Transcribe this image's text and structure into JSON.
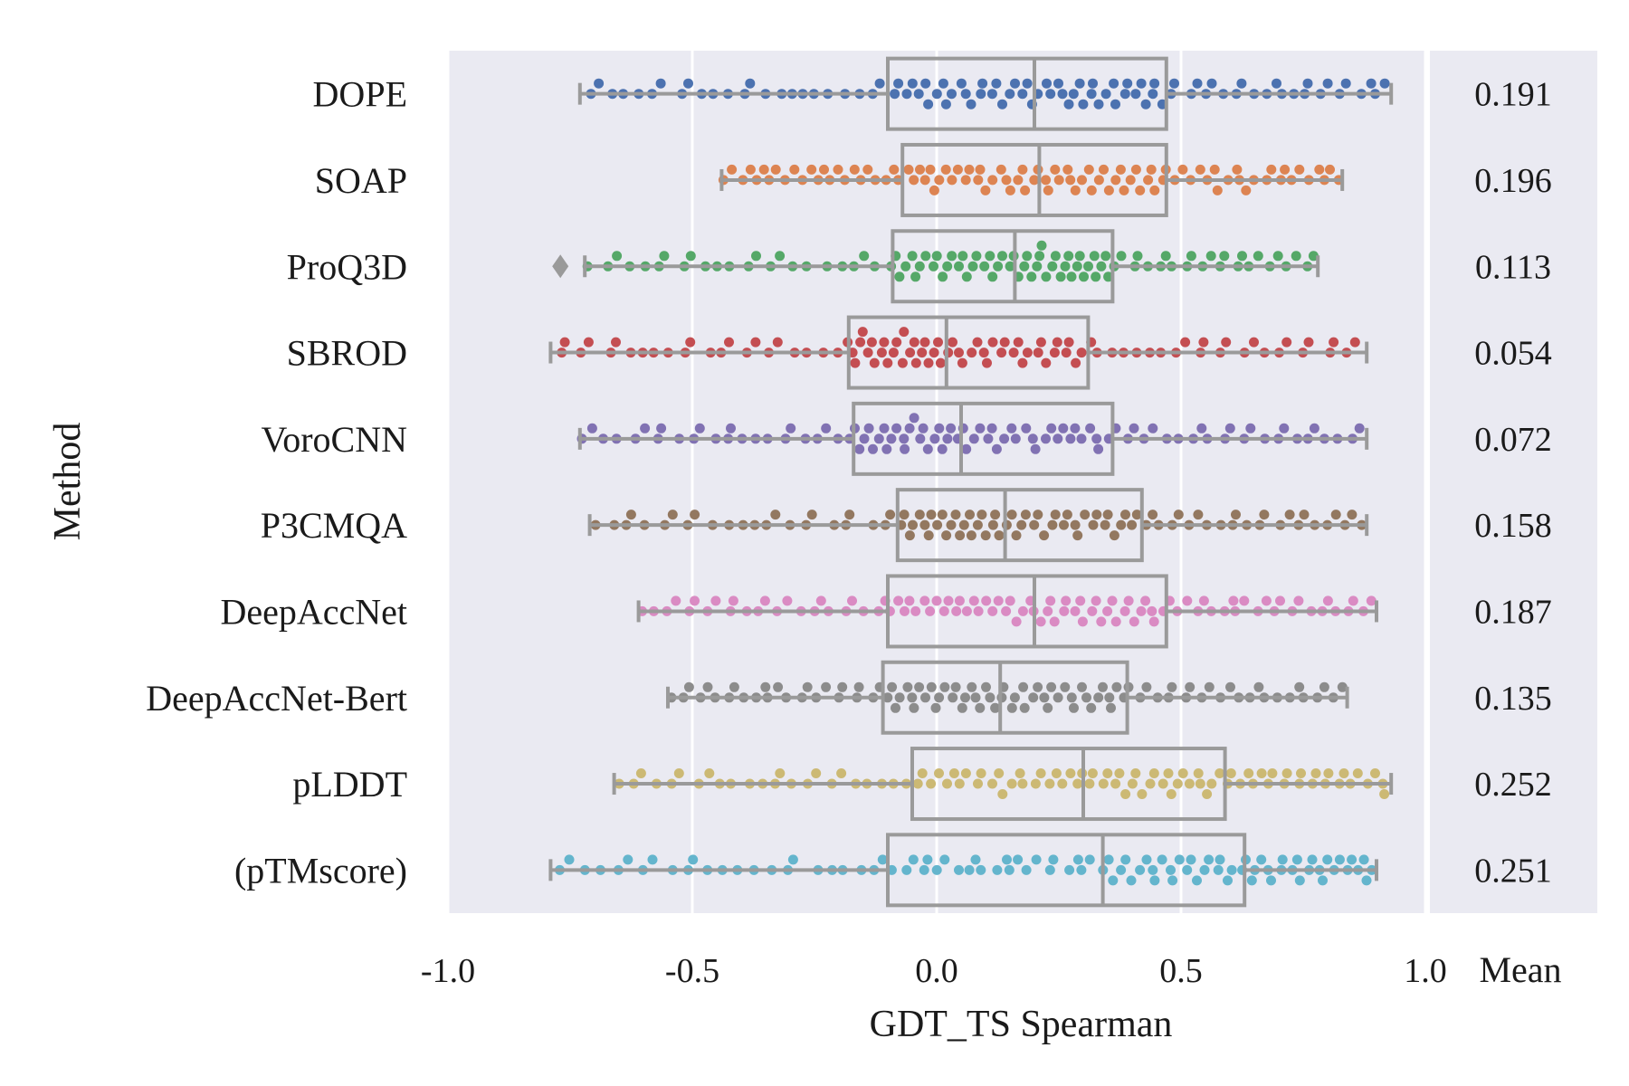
{
  "chart_data": {
    "type": "box-swarm",
    "xlabel": "GDT_TS Spearman",
    "ylabel": "Method",
    "xlim": [
      -1.0,
      1.0
    ],
    "xticks": [
      "-1.0",
      "-0.5",
      "0.0",
      "0.5",
      "1.0"
    ],
    "mean_column_label": "Mean",
    "grid": true,
    "colors": {
      "DOPE": "#4c72b0",
      "SOAP": "#dd8452",
      "ProQ3D": "#55a868",
      "SBROD": "#c44e52",
      "VoroCNN": "#8172b3",
      "P3CMQA": "#937860",
      "DeepAccNet": "#da8bc3",
      "DeepAccNet-Bert": "#8c8c8c",
      "pLDDT": "#ccb974",
      "(pTMscore)": "#64b5cd"
    },
    "series": [
      {
        "name": "DOPE",
        "mean": "0.191",
        "whisker_low": -0.73,
        "q1": -0.1,
        "median": 0.2,
        "q3": 0.47,
        "whisker_high": 0.93
      },
      {
        "name": "SOAP",
        "mean": "0.196",
        "whisker_low": -0.44,
        "q1": -0.07,
        "median": 0.21,
        "q3": 0.47,
        "whisker_high": 0.83
      },
      {
        "name": "ProQ3D",
        "mean": "0.113",
        "whisker_low": -0.72,
        "q1": -0.09,
        "median": 0.16,
        "q3": 0.36,
        "whisker_high": 0.78,
        "outliers": [
          -0.77
        ]
      },
      {
        "name": "SBROD",
        "mean": "0.054",
        "whisker_low": -0.79,
        "q1": -0.18,
        "median": 0.02,
        "q3": 0.31,
        "whisker_high": 0.88
      },
      {
        "name": "VoroCNN",
        "mean": "0.072",
        "whisker_low": -0.73,
        "q1": -0.17,
        "median": 0.05,
        "q3": 0.36,
        "whisker_high": 0.88
      },
      {
        "name": "P3CMQA",
        "mean": "0.158",
        "whisker_low": -0.71,
        "q1": -0.08,
        "median": 0.14,
        "q3": 0.42,
        "whisker_high": 0.88
      },
      {
        "name": "DeepAccNet",
        "mean": "0.187",
        "whisker_low": -0.61,
        "q1": -0.1,
        "median": 0.2,
        "q3": 0.47,
        "whisker_high": 0.9
      },
      {
        "name": "DeepAccNet-Bert",
        "mean": "0.135",
        "whisker_low": -0.55,
        "q1": -0.11,
        "median": 0.13,
        "q3": 0.39,
        "whisker_high": 0.84
      },
      {
        "name": "pLDDT",
        "mean": "0.252",
        "whisker_low": -0.66,
        "q1": -0.05,
        "median": 0.3,
        "q3": 0.59,
        "whisker_high": 0.93
      },
      {
        "name": "(pTMscore)",
        "mean": "0.251",
        "whisker_low": -0.79,
        "q1": -0.1,
        "median": 0.34,
        "q3": 0.63,
        "whisker_high": 0.9
      }
    ]
  }
}
